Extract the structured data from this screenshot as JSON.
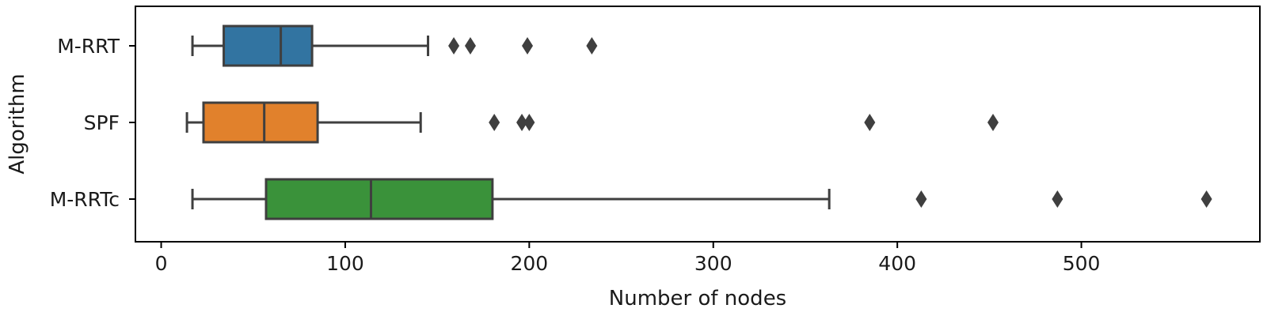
{
  "chart_data": {
    "type": "box",
    "orientation": "horizontal",
    "xlabel": "Number of nodes",
    "ylabel": "Algorithm",
    "xlim": [
      -14,
      597
    ],
    "xticks": [
      0,
      100,
      200,
      300,
      400,
      500
    ],
    "xtick_labels": [
      "0",
      "100",
      "200",
      "300",
      "400",
      "500"
    ],
    "grid": false,
    "categories": [
      "M-RRT",
      "SPF",
      "M-RRTc"
    ],
    "boxes": [
      {
        "name": "M-RRT",
        "color": "#3274a1",
        "whisker_low": 17,
        "q1": 34,
        "median": 65,
        "q3": 82,
        "whisker_high": 145,
        "outliers": [
          159,
          168,
          199,
          234
        ]
      },
      {
        "name": "SPF",
        "color": "#e1812c",
        "whisker_low": 14,
        "q1": 23,
        "median": 56,
        "q3": 85,
        "whisker_high": 141,
        "outliers": [
          181,
          196,
          200,
          385,
          452
        ]
      },
      {
        "name": "M-RRTc",
        "color": "#3a923a",
        "whisker_low": 17,
        "q1": 57,
        "median": 114,
        "q3": 180,
        "whisker_high": 363,
        "outliers": [
          413,
          487,
          568
        ]
      }
    ]
  },
  "style": {
    "edge_color": "#3f3f3f",
    "outlier_color": "#3f3f3f"
  }
}
